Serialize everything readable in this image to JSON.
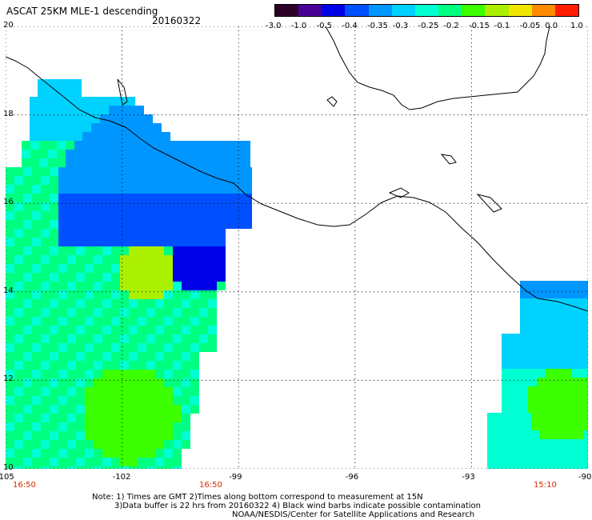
{
  "title": "ASCAT 25KM MLE-1 descending",
  "date": "20160322",
  "colorbar": {
    "labels": [
      "-3.0",
      "-1.0",
      "-0.5",
      "-0.4",
      "-0.35",
      "-0.3",
      "-0.25",
      "-0.2",
      "-0.15",
      "-0.1",
      "-0.05",
      "0.0",
      "1.0"
    ],
    "colors": [
      "#2a0026",
      "#4a0096",
      "#0000e6",
      "#0050ff",
      "#0096ff",
      "#00d2ff",
      "#00ffd2",
      "#00ff80",
      "#3cff00",
      "#aaf000",
      "#f0e600",
      "#ff8c00",
      "#ff1e00"
    ]
  },
  "axes": {
    "lat_labels": [
      "20",
      "18",
      "16",
      "14",
      "12",
      "10"
    ],
    "lon_labels": [
      "-105",
      "-102",
      "-99",
      "-96",
      "-93",
      "-90"
    ],
    "lon_range": [
      -105,
      -90
    ],
    "lat_range": [
      10,
      20
    ]
  },
  "pass_times": [
    "16:50",
    "16:50",
    "15:10"
  ],
  "notes": [
    "Note: 1) Times are GMT 2)Times along bottom correspond to measurement at 15N",
    "3)Data buffer is 22 hrs from 20160322 4) Black wind barbs indicate possible contamination",
    "NOAA/NESDIS/Center for Satellite Applications and Research"
  ]
}
